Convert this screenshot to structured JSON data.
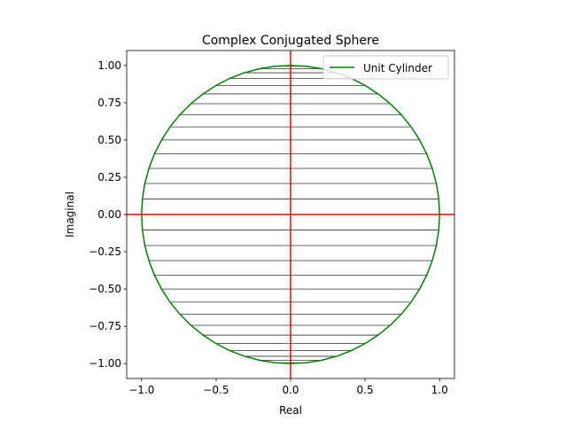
{
  "chart_data": {
    "type": "line",
    "title": "Complex Conjugated Sphere",
    "xlabel": "Real",
    "ylabel": "Imaginal",
    "xlim": [
      -1.1,
      1.1
    ],
    "ylim": [
      -1.1,
      1.1
    ],
    "xticks": [
      -1.0,
      -0.5,
      0.0,
      0.5,
      1.0
    ],
    "xtick_labels": [
      "−1.0",
      "−0.5",
      "0.0",
      "0.5",
      "1.0"
    ],
    "yticks": [
      -1.0,
      -0.75,
      -0.5,
      -0.25,
      0.0,
      0.25,
      0.5,
      0.75,
      1.0
    ],
    "ytick_labels": [
      "−1.00",
      "−0.75",
      "−0.50",
      "−0.25",
      "0.00",
      "0.25",
      "0.50",
      "0.75",
      "1.00"
    ],
    "grid": false,
    "legend": {
      "placement": "top-right",
      "entries": [
        "Unit Cylinder"
      ]
    },
    "series": [
      {
        "name": "Unit Cylinder",
        "kind": "circle",
        "radius": 1.0,
        "color": "#008000",
        "angle_step_deg": 6
      }
    ],
    "conjugate_lines": {
      "color": "#333333",
      "angle_step_deg": 6,
      "description_values": "horizontal chords at y = sin(k·6°), k = −15…15"
    },
    "axes_lines": {
      "color": "#ff0000",
      "x": 0,
      "y": 0
    }
  }
}
